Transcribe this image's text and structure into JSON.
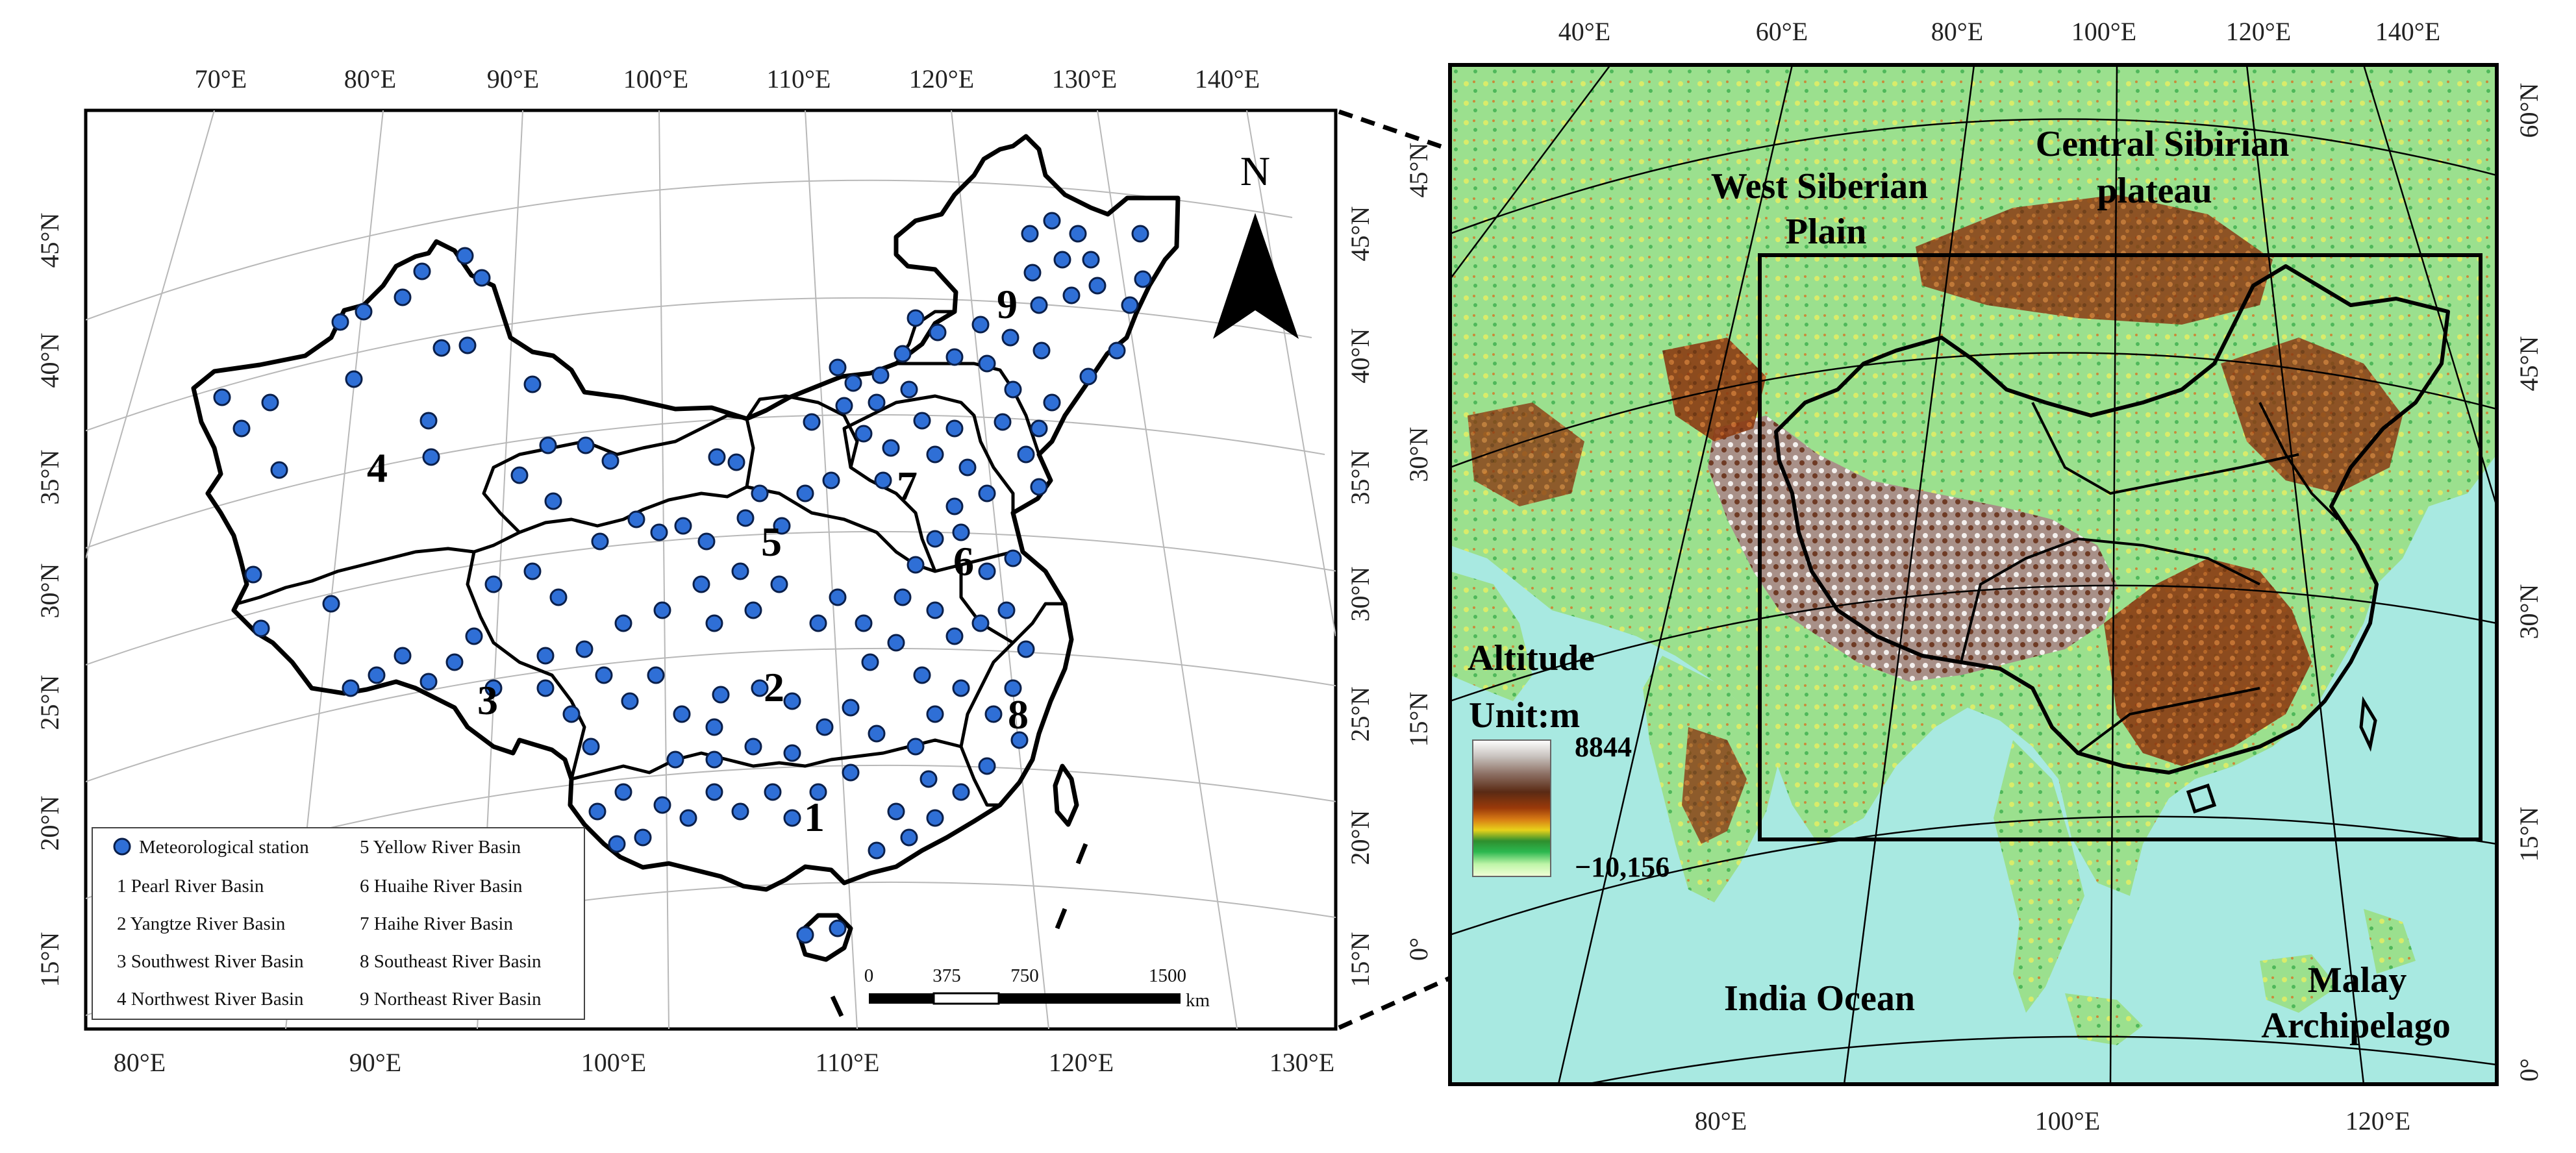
{
  "left_map": {
    "top_lon_labels": [
      "70°E",
      "80°E",
      "90°E",
      "100°E",
      "110°E",
      "120°E",
      "130°E",
      "140°E"
    ],
    "bottom_lon_labels": [
      "80°E",
      "90°E",
      "100°E",
      "110°E",
      "120°E",
      "130°E"
    ],
    "left_lat_labels": [
      "15°N",
      "20°N",
      "25°N",
      "30°N",
      "35°N",
      "40°N",
      "45°N"
    ],
    "right_lat_labels": [
      "15°N",
      "20°N",
      "25°N",
      "30°N",
      "35°N",
      "40°N",
      "45°N"
    ],
    "north_arrow_label": "N",
    "basin_numbers": [
      "1",
      "2",
      "3",
      "4",
      "5",
      "6",
      "7",
      "8",
      "9"
    ],
    "legend": {
      "station_label": "Meteorological station",
      "items": [
        "1 Pearl River Basin",
        "2 Yangtze River Basin",
        "3 Southwest River Basin",
        "4 Northwest River Basin",
        "5 Yellow River Basin",
        "6 Huaihe River Basin",
        "7 Haihe River Basin",
        "8 Southeast River Basin",
        "9 Northeast River Basin"
      ]
    },
    "scale_bar": {
      "ticks": [
        "0",
        "375",
        "750",
        "1500"
      ],
      "unit": "km"
    },
    "colors": {
      "station_fill": "#2f6fd6",
      "station_stroke": "#0a1f4a"
    }
  },
  "right_map": {
    "top_lon_labels": [
      "40°E",
      "60°E",
      "80°E",
      "100°E",
      "120°E",
      "140°E"
    ],
    "bottom_lon_labels": [
      "80°E",
      "100°E",
      "120°E"
    ],
    "left_lat_labels": [
      "0°",
      "15°N",
      "30°N",
      "45°N"
    ],
    "right_lat_labels": [
      "0°",
      "15°N",
      "30°N",
      "45°N",
      "60°N"
    ],
    "region_labels": {
      "west_siberian_1": "West Siberian",
      "west_siberian_2": "Plain",
      "central_sibirian_1": "Central Sibirian",
      "central_sibirian_2": "plateau",
      "india_ocean": "India Ocean",
      "malay_1": "Malay",
      "malay_2": "Archipelago"
    },
    "altitude_legend": {
      "title": "Altitude",
      "unit": "Unit:m",
      "max": "8844",
      "min": "−10,156",
      "colors": [
        "#ffffff",
        "#c8c2be",
        "#8c6f63",
        "#5a2a14",
        "#9b3a0a",
        "#d77a14",
        "#e8d21a",
        "#2e8f2e",
        "#2cb84f",
        "#bff5a8",
        "#f2ffd8"
      ]
    },
    "colors": {
      "ocean": "#a8e9e1",
      "land_green": "#8fd98a",
      "land_brown": "#9b4a22"
    }
  }
}
